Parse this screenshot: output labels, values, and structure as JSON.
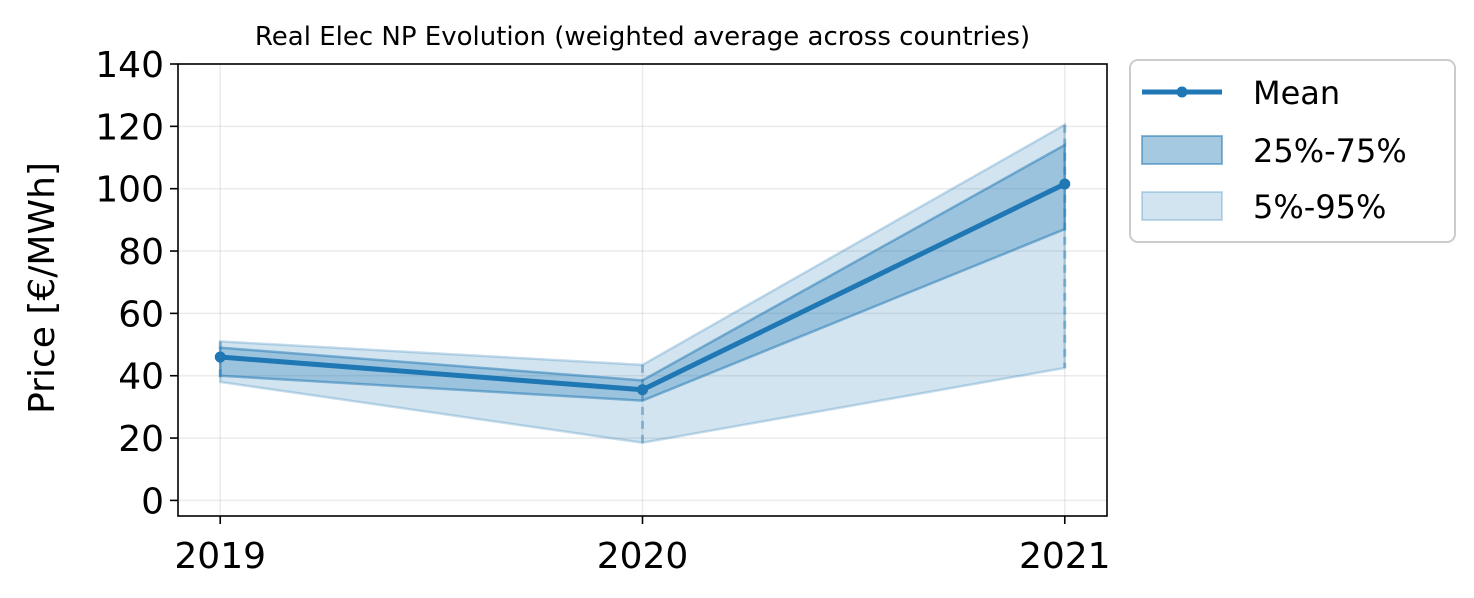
{
  "chart_data": {
    "type": "line",
    "title": "Real Elec NP Evolution (weighted average across countries)",
    "xlabel": "",
    "ylabel": "Price [€/MWh]",
    "x": [
      "2019",
      "2020",
      "2021"
    ],
    "xlim": [
      2018.9,
      2021.1
    ],
    "ylim": [
      -5,
      140
    ],
    "yticks": [
      0,
      20,
      40,
      60,
      80,
      100,
      120,
      140
    ],
    "grid": true,
    "legend_position": "outside-top-right",
    "series": [
      {
        "name": "Mean",
        "kind": "line",
        "values": [
          46,
          35.5,
          101.5
        ]
      },
      {
        "name": "25%-75%",
        "kind": "band",
        "lower": [
          40,
          32,
          87
        ],
        "upper": [
          49,
          38.5,
          114
        ]
      },
      {
        "name": "5%-95%",
        "kind": "band",
        "lower": [
          38,
          18.5,
          42.5
        ],
        "upper": [
          51,
          43.5,
          120.5
        ]
      }
    ],
    "colors": {
      "mean": "#1f77b4",
      "band_inner": "#1f77b4",
      "band_outer": "#1f77b4"
    }
  }
}
